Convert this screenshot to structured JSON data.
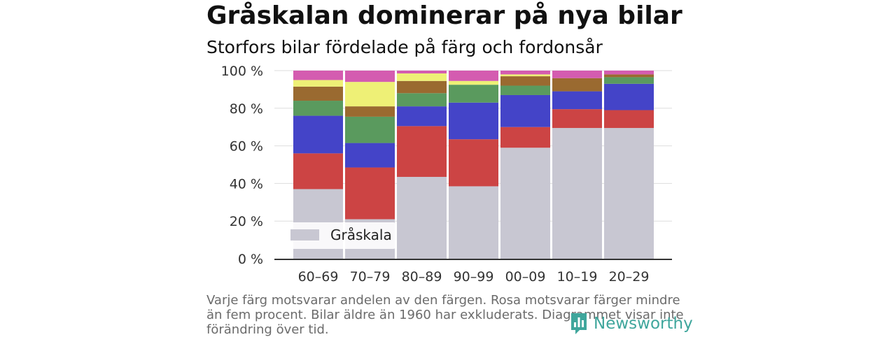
{
  "title": "Gråskalan dominerar på nya bilar",
  "subtitle": "Storfors bilar fördelade på färg och fordonsår",
  "footnote": "Varje färg motsvarar andelen av den färgen. Rosa motsvarar färger mindre än fem procent. Bilar äldre än 1960 har exkluderats. Diagrammet visar inte förändring över tid.",
  "logo": {
    "text": "Newsworthy",
    "icon": "bar-chart-icon",
    "color": "#3fa69c"
  },
  "chart_data": {
    "type": "bar",
    "stacked": true,
    "categories": [
      "60–69",
      "70–79",
      "80–89",
      "90–99",
      "00–09",
      "10–19",
      "20–29"
    ],
    "y_ticks": [
      "0 %",
      "20 %",
      "40 %",
      "60 %",
      "80 %",
      "100 %"
    ],
    "ylim": [
      0,
      100
    ],
    "grid": true,
    "legend": {
      "label": "Gråskala",
      "placement": "bottom-left"
    },
    "series": [
      {
        "name": "Gråskala",
        "color": "#c8c7d2",
        "values": [
          37,
          21,
          43.5,
          38.5,
          59,
          69.5,
          69.5
        ]
      },
      {
        "color": "#cc4444",
        "values": [
          19,
          27.5,
          27,
          25,
          11,
          10,
          9.5
        ]
      },
      {
        "color": "#4444c8",
        "values": [
          20,
          13,
          10.5,
          19.5,
          17,
          9.5,
          14
        ]
      },
      {
        "color": "#5a9a5e",
        "values": [
          8,
          14,
          7,
          9.5,
          5,
          0,
          3.5
        ]
      },
      {
        "color": "#9a6a30",
        "values": [
          7.5,
          5.5,
          6.5,
          0,
          5,
          7,
          1.5
        ]
      },
      {
        "color": "#eef076",
        "values": [
          3.5,
          13,
          4,
          2,
          1,
          0,
          0
        ]
      },
      {
        "color": "#d45cb0",
        "values": [
          5,
          6,
          1.5,
          5.5,
          2,
          4,
          2
        ]
      }
    ]
  }
}
